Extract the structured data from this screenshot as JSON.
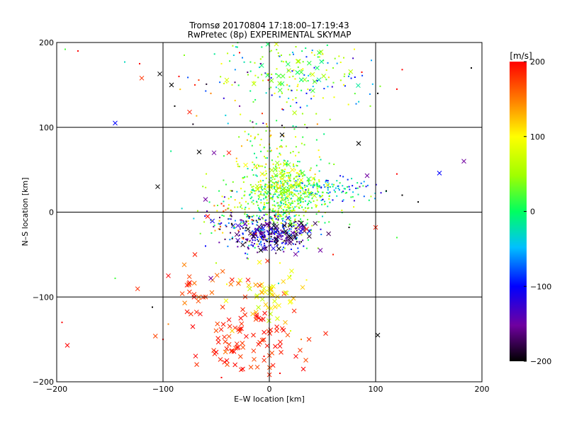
{
  "chart_data": {
    "type": "scatter",
    "title": "Tromsø 20170804 17:18:00–17:19:43",
    "subtitle": "RwPretec (8p) EXPERIMENTAL SKYMAP",
    "xlabel": "E–W location [km]",
    "ylabel": "N–S location [km]",
    "xlim": [
      -200,
      200
    ],
    "ylim": [
      -200,
      200
    ],
    "xticks": [
      "−200",
      "−100",
      "0",
      "100",
      "200"
    ],
    "yticks": [
      "−200",
      "−100",
      "0",
      "100",
      "200"
    ],
    "grid": true,
    "marker_types": [
      "x",
      "dot"
    ],
    "colorbar": {
      "label": "[m/s]",
      "range": [
        -200,
        200
      ],
      "ticks": [
        "200",
        "100",
        "0",
        "−100",
        "−200"
      ],
      "tick_values": [
        200,
        100,
        0,
        -100,
        -200
      ],
      "colormap": [
        "#000000",
        "#7000a0",
        "#0000ff",
        "#00c0ff",
        "#00ff60",
        "#a0ff00",
        "#ffff00",
        "#ff8000",
        "#ff0000"
      ]
    },
    "points": [
      {
        "x": -180,
        "y": 190,
        "v": 200,
        "m": "dot"
      },
      {
        "x": -145,
        "y": 105,
        "v": -100,
        "m": "x"
      },
      {
        "x": -120,
        "y": 158,
        "v": 180,
        "m": "x"
      },
      {
        "x": -103,
        "y": 163,
        "v": -200,
        "m": "x"
      },
      {
        "x": -92,
        "y": 150,
        "v": -200,
        "m": "x"
      },
      {
        "x": -75,
        "y": 118,
        "v": 190,
        "m": "x"
      },
      {
        "x": -66,
        "y": 71,
        "v": -200,
        "m": "x"
      },
      {
        "x": -52,
        "y": 70,
        "v": -150,
        "m": "x"
      },
      {
        "x": -38,
        "y": 70,
        "v": 190,
        "m": "x"
      },
      {
        "x": -105,
        "y": 30,
        "v": -200,
        "m": "x"
      },
      {
        "x": 18,
        "y": 56,
        "v": 30,
        "m": "x"
      },
      {
        "x": 12,
        "y": 43,
        "v": 40,
        "m": "x"
      },
      {
        "x": 12,
        "y": 91,
        "v": -200,
        "m": "x"
      },
      {
        "x": 84,
        "y": 81,
        "v": -200,
        "m": "x"
      },
      {
        "x": 92,
        "y": 43,
        "v": -150,
        "m": "x"
      },
      {
        "x": 160,
        "y": 46,
        "v": -100,
        "m": "x"
      },
      {
        "x": 183,
        "y": 60,
        "v": -150,
        "m": "x"
      },
      {
        "x": 38,
        "y": 22,
        "v": 40,
        "m": "x"
      },
      {
        "x": 45,
        "y": 170,
        "v": 0,
        "m": "x"
      },
      {
        "x": 30,
        "y": 165,
        "v": 20,
        "m": "x"
      },
      {
        "x": 2,
        "y": 155,
        "v": 40,
        "m": "x"
      },
      {
        "x": 100,
        "y": -18,
        "v": 190,
        "m": "x"
      },
      {
        "x": 48,
        "y": -45,
        "v": -150,
        "m": "x"
      },
      {
        "x": 102,
        "y": -145,
        "v": -200,
        "m": "x"
      },
      {
        "x": 53,
        "y": -143,
        "v": 190,
        "m": "x"
      },
      {
        "x": -190,
        "y": -157,
        "v": 200,
        "m": "x"
      },
      {
        "x": -70,
        "y": -50,
        "v": 190,
        "m": "x"
      },
      {
        "x": -80,
        "y": -62,
        "v": 150,
        "m": "x"
      },
      {
        "x": -95,
        "y": -75,
        "v": 200,
        "m": "x"
      },
      {
        "x": -75,
        "y": -83,
        "v": 200,
        "m": "x"
      },
      {
        "x": -55,
        "y": -78,
        "v": -150,
        "m": "x"
      },
      {
        "x": -60,
        "y": -100,
        "v": 180,
        "m": "x"
      },
      {
        "x": -20,
        "y": -80,
        "v": 200,
        "m": "x"
      },
      {
        "x": -12,
        "y": -100,
        "v": 100,
        "m": "x"
      },
      {
        "x": -5,
        "y": -90,
        "v": 80,
        "m": "x"
      },
      {
        "x": 5,
        "y": -105,
        "v": 80,
        "m": "x"
      },
      {
        "x": 15,
        "y": -95,
        "v": 110,
        "m": "x"
      },
      {
        "x": -10,
        "y": -125,
        "v": 200,
        "m": "x"
      },
      {
        "x": -15,
        "y": -145,
        "v": 190,
        "m": "x"
      },
      {
        "x": -30,
        "y": -160,
        "v": 200,
        "m": "x"
      },
      {
        "x": -40,
        "y": -175,
        "v": 200,
        "m": "x"
      },
      {
        "x": -25,
        "y": -185,
        "v": 200,
        "m": "x"
      },
      {
        "x": -50,
        "y": -165,
        "v": 200,
        "m": "x"
      },
      {
        "x": 10,
        "y": -158,
        "v": 200,
        "m": "x"
      },
      {
        "x": 25,
        "y": -170,
        "v": 200,
        "m": "x"
      },
      {
        "x": 32,
        "y": -185,
        "v": 200,
        "m": "x"
      },
      {
        "x": -65,
        "y": -120,
        "v": 200,
        "m": "x"
      },
      {
        "x": -72,
        "y": -135,
        "v": 200,
        "m": "x"
      },
      {
        "x": -35,
        "y": -140,
        "v": 120,
        "m": "x"
      },
      {
        "x": 15,
        "y": -130,
        "v": 130,
        "m": "x"
      },
      {
        "x": -60,
        "y": 15,
        "v": -150,
        "m": "x"
      },
      {
        "x": -58,
        "y": -5,
        "v": 200,
        "m": "x"
      },
      {
        "x": -8,
        "y": -45,
        "v": -200,
        "m": "x"
      },
      {
        "x": 20,
        "y": -30,
        "v": -200,
        "m": "x"
      },
      {
        "x": -20,
        "y": -20,
        "v": -200,
        "m": "x"
      },
      {
        "x": 35,
        "y": -20,
        "v": 190,
        "m": "x"
      },
      {
        "x": -192,
        "y": 192,
        "v": 20,
        "m": "dot"
      },
      {
        "x": -136,
        "y": 177,
        "v": -30,
        "m": "dot"
      },
      {
        "x": -122,
        "y": 175,
        "v": 200,
        "m": "dot"
      },
      {
        "x": -89,
        "y": 125,
        "v": -200,
        "m": "dot"
      },
      {
        "x": -85,
        "y": 160,
        "v": 200,
        "m": "dot"
      },
      {
        "x": -80,
        "y": 185,
        "v": 40,
        "m": "dot"
      },
      {
        "x": -70,
        "y": 150,
        "v": 190,
        "m": "dot"
      },
      {
        "x": -55,
        "y": 140,
        "v": 150,
        "m": "dot"
      },
      {
        "x": -45,
        "y": 175,
        "v": 100,
        "m": "dot"
      },
      {
        "x": -35,
        "y": 150,
        "v": 80,
        "m": "dot"
      },
      {
        "x": -28,
        "y": 188,
        "v": 200,
        "m": "dot"
      },
      {
        "x": -20,
        "y": 162,
        "v": 40,
        "m": "dot"
      },
      {
        "x": -15,
        "y": 130,
        "v": 30,
        "m": "dot"
      },
      {
        "x": -8,
        "y": 175,
        "v": -150,
        "m": "dot"
      },
      {
        "x": 5,
        "y": 140,
        "v": 100,
        "m": "dot"
      },
      {
        "x": 20,
        "y": 125,
        "v": 0,
        "m": "dot"
      },
      {
        "x": 35,
        "y": 140,
        "v": -100,
        "m": "dot"
      },
      {
        "x": 45,
        "y": 155,
        "v": -100,
        "m": "dot"
      },
      {
        "x": 55,
        "y": 148,
        "v": -50,
        "m": "dot"
      },
      {
        "x": 60,
        "y": 170,
        "v": 40,
        "m": "dot"
      },
      {
        "x": 70,
        "y": 182,
        "v": 60,
        "m": "dot"
      },
      {
        "x": 80,
        "y": 192,
        "v": 100,
        "m": "dot"
      },
      {
        "x": 25,
        "y": 195,
        "v": 50,
        "m": "dot"
      },
      {
        "x": 40,
        "y": 188,
        "v": 110,
        "m": "dot"
      },
      {
        "x": 87,
        "y": 165,
        "v": 200,
        "m": "dot"
      },
      {
        "x": 95,
        "y": 125,
        "v": 40,
        "m": "dot"
      },
      {
        "x": 102,
        "y": 140,
        "v": -200,
        "m": "dot"
      },
      {
        "x": 120,
        "y": 145,
        "v": 200,
        "m": "dot"
      },
      {
        "x": 125,
        "y": 168,
        "v": 200,
        "m": "dot"
      },
      {
        "x": 190,
        "y": 170,
        "v": -200,
        "m": "dot"
      },
      {
        "x": -15,
        "y": 100,
        "v": 60,
        "m": "dot"
      },
      {
        "x": 0,
        "y": 80,
        "v": 120,
        "m": "dot"
      },
      {
        "x": 20,
        "y": 70,
        "v": 40,
        "m": "dot"
      },
      {
        "x": 30,
        "y": 45,
        "v": 60,
        "m": "dot"
      },
      {
        "x": 45,
        "y": 30,
        "v": 30,
        "m": "dot"
      },
      {
        "x": 55,
        "y": 35,
        "v": -50,
        "m": "dot"
      },
      {
        "x": 65,
        "y": 28,
        "v": -30,
        "m": "dot"
      },
      {
        "x": 75,
        "y": 30,
        "v": -100,
        "m": "dot"
      },
      {
        "x": 85,
        "y": 30,
        "v": -150,
        "m": "dot"
      },
      {
        "x": 110,
        "y": 25,
        "v": -200,
        "m": "dot"
      },
      {
        "x": 125,
        "y": 20,
        "v": -200,
        "m": "dot"
      },
      {
        "x": 140,
        "y": 12,
        "v": -200,
        "m": "dot"
      },
      {
        "x": 120,
        "y": 45,
        "v": 200,
        "m": "dot"
      },
      {
        "x": -10,
        "y": 55,
        "v": 40,
        "m": "dot"
      },
      {
        "x": -25,
        "y": 40,
        "v": 60,
        "m": "dot"
      },
      {
        "x": -35,
        "y": 25,
        "v": -200,
        "m": "dot"
      },
      {
        "x": -45,
        "y": 10,
        "v": 190,
        "m": "dot"
      },
      {
        "x": -20,
        "y": 10,
        "v": 20,
        "m": "dot"
      },
      {
        "x": -5,
        "y": 20,
        "v": 30,
        "m": "dot"
      },
      {
        "x": 5,
        "y": 30,
        "v": 10,
        "m": "dot"
      },
      {
        "x": 15,
        "y": 15,
        "v": 40,
        "m": "dot"
      },
      {
        "x": 25,
        "y": 25,
        "v": -30,
        "m": "dot"
      },
      {
        "x": -10,
        "y": 5,
        "v": 0,
        "m": "dot"
      },
      {
        "x": 0,
        "y": 0,
        "v": 20,
        "m": "dot"
      },
      {
        "x": 10,
        "y": -5,
        "v": 30,
        "m": "dot"
      },
      {
        "x": -15,
        "y": -10,
        "v": -200,
        "m": "dot"
      },
      {
        "x": -5,
        "y": -15,
        "v": -150,
        "m": "dot"
      },
      {
        "x": 5,
        "y": -20,
        "v": -200,
        "m": "dot"
      },
      {
        "x": -25,
        "y": -25,
        "v": -100,
        "m": "dot"
      },
      {
        "x": -35,
        "y": -15,
        "v": -200,
        "m": "dot"
      },
      {
        "x": 15,
        "y": -25,
        "v": -150,
        "m": "dot"
      },
      {
        "x": 25,
        "y": -15,
        "v": 60,
        "m": "dot"
      },
      {
        "x": 30,
        "y": -35,
        "v": -200,
        "m": "dot"
      },
      {
        "x": -30,
        "y": -35,
        "v": -200,
        "m": "dot"
      },
      {
        "x": 0,
        "y": -35,
        "v": -200,
        "m": "dot"
      },
      {
        "x": 40,
        "y": 5,
        "v": 20,
        "m": "dot"
      },
      {
        "x": 50,
        "y": -5,
        "v": -30,
        "m": "dot"
      },
      {
        "x": 75,
        "y": -18,
        "v": -200,
        "m": "dot"
      },
      {
        "x": 60,
        "y": -50,
        "v": 190,
        "m": "dot"
      },
      {
        "x": 120,
        "y": -30,
        "v": 20,
        "m": "dot"
      },
      {
        "x": -145,
        "y": -78,
        "v": 20,
        "m": "dot"
      },
      {
        "x": -110,
        "y": -112,
        "v": -200,
        "m": "dot"
      },
      {
        "x": -95,
        "y": -132,
        "v": 150,
        "m": "dot"
      },
      {
        "x": -100,
        "y": -150,
        "v": 200,
        "m": "dot"
      },
      {
        "x": -195,
        "y": -130,
        "v": 200,
        "m": "dot"
      },
      {
        "x": -60,
        "y": -40,
        "v": -100,
        "m": "dot"
      },
      {
        "x": -50,
        "y": -60,
        "v": 60,
        "m": "dot"
      },
      {
        "x": -40,
        "y": -85,
        "v": 100,
        "m": "dot"
      },
      {
        "x": -20,
        "y": -55,
        "v": 40,
        "m": "dot"
      },
      {
        "x": 10,
        "y": -60,
        "v": 100,
        "m": "dot"
      },
      {
        "x": 20,
        "y": -75,
        "v": 60,
        "m": "dot"
      },
      {
        "x": 35,
        "y": -80,
        "v": 100,
        "m": "dot"
      },
      {
        "x": 20,
        "y": -140,
        "v": 80,
        "m": "dot"
      },
      {
        "x": 30,
        "y": -150,
        "v": 150,
        "m": "dot"
      },
      {
        "x": -5,
        "y": -170,
        "v": 200,
        "m": "dot"
      },
      {
        "x": 10,
        "y": -190,
        "v": 200,
        "m": "dot"
      },
      {
        "x": -45,
        "y": -195,
        "v": 200,
        "m": "dot"
      }
    ],
    "clusters": [
      {
        "cx": 10,
        "cy": 10,
        "sx": 22,
        "sy": 22,
        "n": 420,
        "vmin": -40,
        "vmax": 100,
        "m": "dot"
      },
      {
        "cx": 35,
        "cy": 25,
        "sx": 25,
        "sy": 10,
        "n": 140,
        "vmin": -80,
        "vmax": 90,
        "m": "dot"
      },
      {
        "cx": 60,
        "cy": 28,
        "sx": 20,
        "sy": 7,
        "n": 60,
        "vmin": -130,
        "vmax": 20,
        "m": "dot"
      },
      {
        "cx": 0,
        "cy": -25,
        "sx": 18,
        "sy": 10,
        "n": 260,
        "vmin": -200,
        "vmax": -60,
        "m": "dot"
      },
      {
        "cx": 5,
        "cy": -25,
        "sx": 20,
        "sy": 10,
        "n": 60,
        "vmin": -200,
        "vmax": -100,
        "m": "x"
      },
      {
        "cx": 15,
        "cy": 35,
        "sx": 12,
        "sy": 10,
        "n": 80,
        "vmin": 20,
        "vmax": 130,
        "m": "dot"
      },
      {
        "cx": 15,
        "cy": 30,
        "sx": 15,
        "sy": 15,
        "n": 40,
        "vmin": 0,
        "vmax": 110,
        "m": "x"
      },
      {
        "cx": 30,
        "cy": 160,
        "sx": 35,
        "sy": 28,
        "n": 130,
        "vmin": -120,
        "vmax": 120,
        "m": "dot"
      },
      {
        "cx": 35,
        "cy": 170,
        "sx": 25,
        "sy": 22,
        "n": 30,
        "vmin": -20,
        "vmax": 80,
        "m": "x"
      },
      {
        "cx": -20,
        "cy": 150,
        "sx": 35,
        "sy": 35,
        "n": 40,
        "vmin": -200,
        "vmax": 200,
        "m": "dot"
      },
      {
        "cx": 5,
        "cy": 80,
        "sx": 22,
        "sy": 25,
        "n": 90,
        "vmin": -20,
        "vmax": 140,
        "m": "dot"
      },
      {
        "cx": 0,
        "cy": -100,
        "sx": 15,
        "sy": 12,
        "n": 40,
        "vmin": 60,
        "vmax": 140,
        "m": "x"
      },
      {
        "cx": -15,
        "cy": -150,
        "sx": 22,
        "sy": 25,
        "n": 80,
        "vmin": 170,
        "vmax": 200,
        "m": "x"
      },
      {
        "cx": -55,
        "cy": -100,
        "sx": 25,
        "sy": 30,
        "n": 30,
        "vmin": 150,
        "vmax": 200,
        "m": "x"
      },
      {
        "cx": -40,
        "cy": -10,
        "sx": 15,
        "sy": 15,
        "n": 70,
        "vmin": -200,
        "vmax": 200,
        "m": "dot"
      }
    ]
  }
}
